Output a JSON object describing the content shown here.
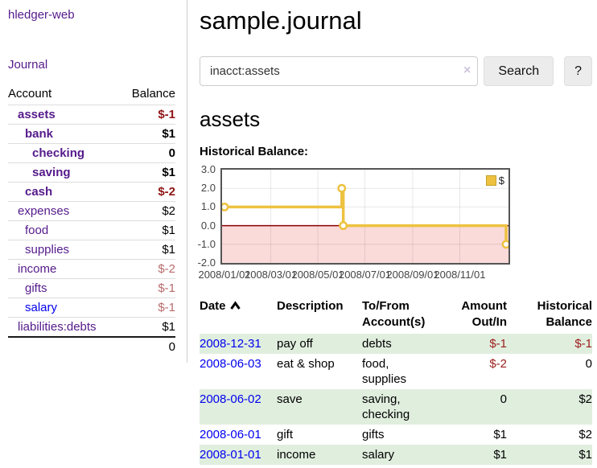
{
  "app": {
    "title": "hledger-web"
  },
  "nav": {
    "journal_label": "Journal"
  },
  "sidebar": {
    "header": {
      "account": "Account",
      "balance": "Balance"
    },
    "accounts": [
      {
        "name": "assets",
        "level": 1,
        "bold": true,
        "balance": "$-1",
        "neg": "strong",
        "unvisited": false
      },
      {
        "name": "bank",
        "level": 2,
        "bold": true,
        "balance": "$1",
        "neg": "none",
        "unvisited": false
      },
      {
        "name": "checking",
        "level": 3,
        "bold": true,
        "balance": "0",
        "neg": "none",
        "unvisited": false
      },
      {
        "name": "saving",
        "level": 3,
        "bold": true,
        "balance": "$1",
        "neg": "none",
        "unvisited": false
      },
      {
        "name": "cash",
        "level": 2,
        "bold": true,
        "balance": "$-2",
        "neg": "strong",
        "unvisited": false
      },
      {
        "name": "expenses",
        "level": 1,
        "bold": false,
        "balance": "$2",
        "neg": "none",
        "unvisited": false
      },
      {
        "name": "food",
        "level": 2,
        "bold": false,
        "balance": "$1",
        "neg": "none",
        "unvisited": false
      },
      {
        "name": "supplies",
        "level": 2,
        "bold": false,
        "balance": "$1",
        "neg": "none",
        "unvisited": false
      },
      {
        "name": "income",
        "level": 1,
        "bold": false,
        "balance": "$-2",
        "neg": "soft",
        "unvisited": false
      },
      {
        "name": "gifts",
        "level": 2,
        "bold": false,
        "balance": "$-1",
        "neg": "soft",
        "unvisited": false
      },
      {
        "name": "salary",
        "level": 2,
        "bold": false,
        "balance": "$-1",
        "neg": "soft",
        "unvisited": true
      },
      {
        "name": "liabilities:debts",
        "level": 1,
        "bold": false,
        "balance": "$1",
        "neg": "none",
        "unvisited": false
      }
    ],
    "total": "0"
  },
  "header": {
    "title": "sample.journal"
  },
  "search": {
    "value": "inacct:assets",
    "clear_icon": "×",
    "button_label": "Search",
    "help_label": "?"
  },
  "account_page": {
    "heading": "assets",
    "chart_label": "Historical Balance:"
  },
  "chart_data": {
    "type": "line",
    "style": "step",
    "title": "",
    "series": [
      {
        "name": "$",
        "color": "#edc240",
        "points": [
          [
            "2008-01-01",
            1
          ],
          [
            "2008-06-01",
            2
          ],
          [
            "2008-06-03",
            0
          ],
          [
            "2008-12-31",
            -1
          ]
        ]
      }
    ],
    "x_range": [
      "2008-01-01",
      "2008-12-31"
    ],
    "ylim": [
      -2,
      3
    ],
    "y_ticks": [
      "3.0",
      "2.0",
      "1.0",
      "0.0",
      "-1.0",
      "-2.0"
    ],
    "x_ticks": [
      "2008/01/01",
      "2008/03/01",
      "2008/05/01",
      "2008/07/01",
      "2008/09/01",
      "2008/11/01"
    ],
    "grid": true,
    "legend": "$",
    "legend_position": "top-right",
    "negative_region_color": "#fbdada",
    "zero_line_color": "#8b0000"
  },
  "register": {
    "columns": [
      "Date",
      "Description",
      "To/From Account(s)",
      "Amount Out/In",
      "Historical Balance"
    ],
    "sort_icon": "caret-up",
    "rows": [
      {
        "date": "2008-12-31",
        "description": "pay off",
        "accounts": "debts",
        "amount": "$-1",
        "amount_negative": true,
        "balance": "$-1",
        "balance_negative": true
      },
      {
        "date": "2008-06-03",
        "description": "eat & shop",
        "accounts": "food, supplies",
        "amount": "$-2",
        "amount_negative": true,
        "balance": "0",
        "balance_negative": false
      },
      {
        "date": "2008-06-02",
        "description": "save",
        "accounts": "saving, checking",
        "amount": "0",
        "amount_negative": false,
        "balance": "$2",
        "balance_negative": false
      },
      {
        "date": "2008-06-01",
        "description": "gift",
        "accounts": "gifts",
        "amount": "$1",
        "amount_negative": false,
        "balance": "$2",
        "balance_negative": false
      },
      {
        "date": "2008-01-01",
        "description": "income",
        "accounts": "salary",
        "amount": "$1",
        "amount_negative": false,
        "balance": "$1",
        "balance_negative": false
      }
    ]
  },
  "colors": {
    "link_purple": "#551a8b",
    "link_blue": "#0000ee",
    "negative_strong": "#8f1414",
    "negative_soft": "#b86b6b",
    "negative_table": "#9d1c1c",
    "row_stripe_green": "#e0eede",
    "series_gold": "#edc240"
  }
}
